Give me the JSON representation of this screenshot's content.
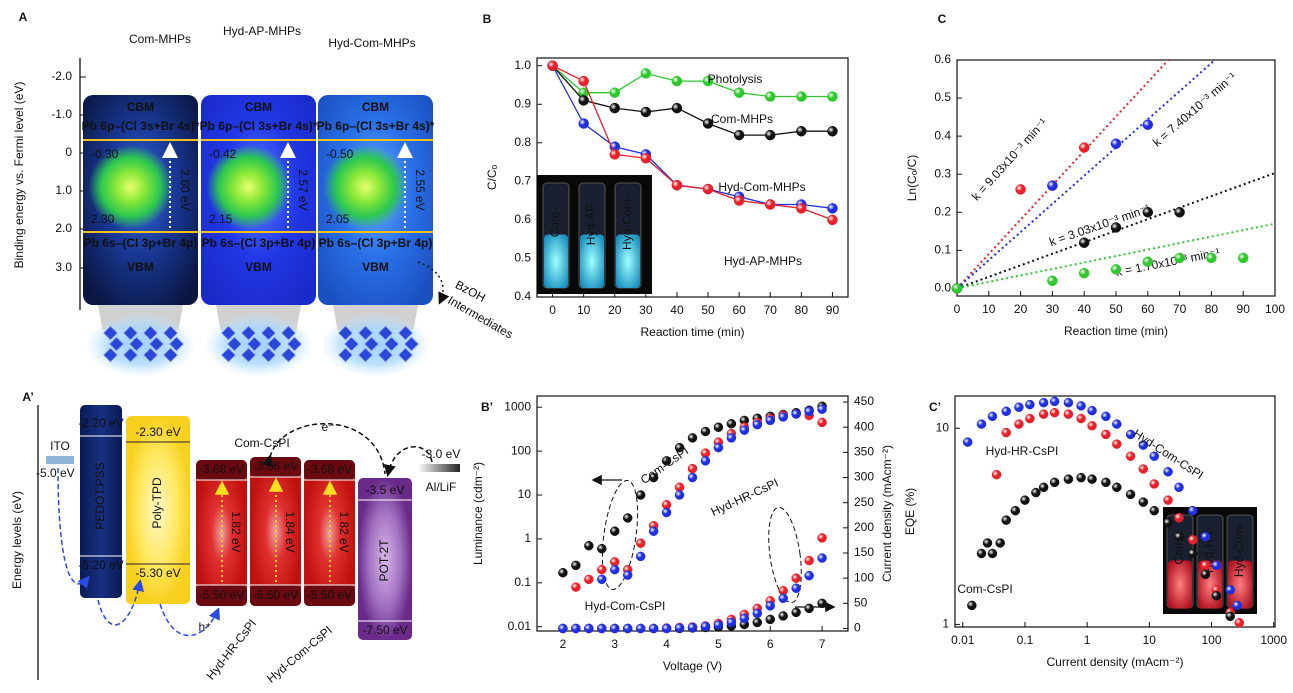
{
  "panel_labels": [
    "A",
    "B",
    "C",
    "A’",
    "B’",
    "C’"
  ],
  "diagram_a": {
    "ylabel": "Binding energy vs. Fermi level (eV)",
    "yticks": [
      "-2.0",
      "-1.0",
      "0",
      "1.0",
      "2.0",
      "3.0"
    ],
    "columns": [
      {
        "name": "Com-MHPs",
        "cbm": "CBM",
        "cb_orbital": "Pb 6p–(Cl 3s+Br 4s)*",
        "cb_value": "-0.30",
        "vb_value": "2.30",
        "gap": "2.60 eV",
        "vb_orbital": "Pb 6s–(Cl 3p+Br 4p)",
        "vbm": "VBM"
      },
      {
        "name": "Hyd-AP-MHPs",
        "cbm": "CBM",
        "cb_orbital": "Pb 6p–(Cl 3s+Br 4s)*",
        "cb_value": "-0.42",
        "vb_value": "2.15",
        "gap": "2.57 eV",
        "vb_orbital": "Pb 6s–(Cl 3p+Br 4p)",
        "vbm": "VBM"
      },
      {
        "name": "Hyd-Com-MHPs",
        "cbm": "CBM",
        "cb_orbital": "Pb 6p–(Cl 3s+Br 4s)*",
        "cb_value": "-0.50",
        "vb_value": "2.05",
        "gap": "2.55 eV",
        "vb_orbital": "Pb 6s–(Cl 3p+Br 4p)",
        "vbm": "VBM"
      }
    ],
    "product": "BzOH",
    "intermediates": "Intermediates"
  },
  "diagram_a2": {
    "ylabel": "Energy levels  (eV)",
    "ito": {
      "name": "ITO",
      "level": "-5.0 eV"
    },
    "layers": [
      {
        "name": "PEDOT:PSS",
        "top": "-2.20 eV",
        "bottom": "-5.20 eV"
      },
      {
        "name": "Poly-TPD",
        "top": "-2.30 eV",
        "bottom": "-5.30 eV"
      },
      {
        "top": "-3.68 eV",
        "bottom": "-5.50 eV",
        "gap": "1.82 eV"
      },
      {
        "top": "-3.66 eV",
        "bottom": "-5.50 eV",
        "gap": "1.84 eV"
      },
      {
        "top": "-3.68 eV",
        "bottom": "-5.50 eV",
        "gap": "1.82 eV"
      },
      {
        "name": "POT-2T",
        "top": "-3.5 eV",
        "bottom": "-7.50 eV"
      }
    ],
    "cathode": {
      "name": "Al/LiF",
      "level": "-3.0 eV"
    },
    "electron": "e⁻",
    "hole": "h⁺",
    "emitters": [
      "Com-CsPI",
      "Hyd-HR-CsPI",
      "Hyd-Com-CsPI"
    ]
  },
  "chart_data": [
    {
      "type": "line",
      "x": [
        0,
        10,
        20,
        30,
        40,
        50,
        60,
        70,
        80,
        90
      ],
      "xlim": [
        -5,
        95
      ],
      "xticks": [
        0,
        10,
        20,
        30,
        40,
        50,
        60,
        70,
        80,
        90
      ],
      "ylim": [
        0.4,
        1.02
      ],
      "yticks": [
        0.4,
        0.5,
        0.6,
        0.7,
        0.8,
        0.9,
        {
          "value": 1,
          "label": "1.0"
        }
      ],
      "xlabel": "Reaction time (min)",
      "ylabel": "C/Cₒ",
      "inset_labels": [
        "Com-",
        "Hyd-AP-",
        "Hyd-Com-"
      ],
      "series": [
        {
          "name": "Photolysis",
          "color": "#2ec82e",
          "values": [
            1.0,
            0.93,
            0.93,
            0.98,
            0.96,
            0.96,
            0.93,
            0.92,
            0.92,
            0.92
          ]
        },
        {
          "name": "Com-MHPs",
          "color": "#111111",
          "values": [
            1.0,
            0.91,
            0.89,
            0.88,
            0.89,
            0.85,
            0.82,
            0.82,
            0.83,
            0.83
          ]
        },
        {
          "name": "Hyd-Com-MHPs",
          "color": "#1f2fe0",
          "values": [
            1.0,
            0.85,
            0.79,
            0.77,
            0.69,
            0.68,
            0.66,
            0.64,
            0.64,
            0.63
          ]
        },
        {
          "name": "Hyd-AP-MHPs",
          "color": "#e8202a",
          "values": [
            1.0,
            0.96,
            0.77,
            0.76,
            0.69,
            0.68,
            0.65,
            0.64,
            0.63,
            0.6
          ]
        }
      ]
    },
    {
      "type": "scatter",
      "xlim": [
        0,
        100
      ],
      "xticks": [
        0,
        10,
        20,
        30,
        40,
        50,
        60,
        70,
        80,
        90,
        100
      ],
      "ylim": [
        -0.02,
        0.6
      ],
      "yticks": [
        {
          "value": 0,
          "label": "0.0"
        },
        0.1,
        0.2,
        0.3,
        0.4,
        0.5,
        0.6
      ],
      "xlabel": "Reaction time (min)",
      "ylabel": "Ln(Cₒ/C)",
      "series": [
        {
          "color": "#e8202a",
          "x": [
            0,
            20,
            30,
            40
          ],
          "values": [
            0,
            0.26,
            0.27,
            0.37
          ],
          "slope": 0.00903,
          "fit_label": "k = 9.03x10⁻³ min⁻¹"
        },
        {
          "color": "#1f2fe0",
          "x": [
            0,
            30,
            50,
            60
          ],
          "values": [
            0,
            0.27,
            0.38,
            0.43
          ],
          "slope": 0.0074,
          "fit_label": "k = 7.40x10⁻³ min⁻¹"
        },
        {
          "color": "#111111",
          "x": [
            0,
            40,
            50,
            60,
            70
          ],
          "values": [
            0,
            0.12,
            0.16,
            0.2,
            0.2
          ],
          "slope": 0.00303,
          "fit_label": "k = 3.03x10⁻³ min⁻¹"
        },
        {
          "color": "#2ec82e",
          "x": [
            0,
            30,
            40,
            50,
            60,
            70,
            80,
            90
          ],
          "values": [
            0,
            0.02,
            0.04,
            0.05,
            0.07,
            0.08,
            0.08,
            0.08
          ],
          "slope": 0.0017,
          "fit_label": "k = 1.70x10⁻³ min⁻¹"
        }
      ]
    },
    {
      "type": "scatter",
      "x": [
        2,
        2.25,
        2.5,
        2.75,
        3,
        3.25,
        3.5,
        3.75,
        4,
        4.25,
        4.5,
        4.75,
        5,
        5.25,
        5.5,
        5.75,
        6,
        6.25,
        6.5,
        6.75,
        7
      ],
      "xlim": [
        1.5,
        7.5
      ],
      "xticks": [
        2,
        3,
        4,
        5,
        6,
        7
      ],
      "ylog": true,
      "ylim": [
        0.008,
        1800
      ],
      "yticks": [
        0.01,
        0.1,
        1,
        10,
        100,
        1000
      ],
      "y2lim": [
        -5,
        462
      ],
      "y2ticks": [
        0,
        50,
        100,
        150,
        200,
        250,
        300,
        350,
        400,
        450
      ],
      "xlabel": "Voltage (V)",
      "ylabel": "Luminance (cdm⁻²)",
      "y2label": "Current density (mAcm⁻²)",
      "series": [
        {
          "name": "Com-CsPI",
          "color": "#111111",
          "values": [
            0.17,
            0.25,
            0.7,
            0.6,
            1.5,
            3,
            10,
            25,
            60,
            120,
            200,
            280,
            350,
            420,
            500,
            560,
            620,
            680,
            750,
            850,
            1050
          ]
        },
        {
          "name": "Hyd-HR-CsPI",
          "color": "#e8202a",
          "values": [
            null,
            0.08,
            0.12,
            0.2,
            0.3,
            0.2,
            0.8,
            2,
            6,
            15,
            40,
            90,
            160,
            250,
            350,
            450,
            550,
            650,
            700,
            650,
            450
          ]
        },
        {
          "name": "Hyd-Com-CsPI",
          "color": "#1f2fe0",
          "values": [
            null,
            null,
            null,
            0.12,
            0.2,
            0.15,
            0.4,
            1.5,
            4,
            10,
            25,
            60,
            120,
            200,
            300,
            400,
            500,
            600,
            700,
            800,
            900
          ]
        },
        {
          "color": "#111111",
          "axis": "y2",
          "values": [
            0,
            0,
            0,
            0,
            0,
            0,
            0,
            0,
            0,
            0,
            1,
            2,
            3,
            5,
            8,
            12,
            18,
            25,
            32,
            40,
            50
          ]
        },
        {
          "color": "#e8202a",
          "axis": "y2",
          "values": [
            0,
            0,
            0,
            0,
            0,
            0,
            0,
            0,
            1,
            2,
            3,
            5,
            10,
            18,
            28,
            40,
            55,
            75,
            100,
            135,
            180
          ]
        },
        {
          "color": "#1f2fe0",
          "axis": "y2",
          "values": [
            0,
            0,
            0,
            0,
            0,
            0,
            0,
            0,
            0,
            1,
            2,
            4,
            7,
            12,
            20,
            30,
            45,
            60,
            80,
            105,
            140
          ]
        }
      ]
    },
    {
      "type": "scatter",
      "xlog": true,
      "xlim": [
        0.0075,
        1050
      ],
      "xticks": [
        0.01,
        0.1,
        1,
        10,
        100,
        1000
      ],
      "ylog": true,
      "ylim": [
        0.97,
        14.6
      ],
      "yticks": [
        1,
        10
      ],
      "xlabel": "Current density (mAcm⁻²)",
      "ylabel": "EQE (%)",
      "inset_labels": [
        "Com-",
        "Hyd-HR-",
        "Hyd-Com-"
      ],
      "series": [
        {
          "name": "Hyd-Com-CsPI",
          "color": "#1f2fe0",
          "x": [
            0.012,
            0.02,
            0.03,
            0.05,
            0.08,
            0.12,
            0.2,
            0.3,
            0.5,
            0.8,
            1.2,
            2,
            3,
            5,
            8,
            12,
            20,
            30,
            50,
            80,
            120,
            200,
            260
          ],
          "values": [
            8.5,
            10.5,
            11.5,
            12.2,
            12.8,
            13.2,
            13.5,
            13.7,
            13.5,
            13,
            12.3,
            11.5,
            10.5,
            9.3,
            8.2,
            7.2,
            6,
            5,
            3.8,
            2.8,
            2,
            1.5,
            1.25
          ]
        },
        {
          "name": "Hyd-HR-CsPI",
          "color": "#e8202a",
          "x": [
            0.035,
            0.05,
            0.08,
            0.12,
            0.2,
            0.3,
            0.5,
            0.8,
            1.2,
            2,
            3,
            5,
            8,
            12,
            20,
            30,
            50,
            80,
            120,
            200,
            280
          ],
          "values": [
            5.8,
            9.5,
            10.5,
            11.2,
            11.8,
            12,
            11.8,
            11.2,
            10.3,
            9.3,
            8.3,
            7.2,
            6.2,
            5.2,
            4.3,
            3.5,
            2.7,
            2,
            1.5,
            1.15,
            1.02
          ]
        },
        {
          "name": "Com-CsPI",
          "color": "#111111",
          "x": [
            0.014,
            0.02,
            0.025,
            0.03,
            0.04,
            0.05,
            0.07,
            0.1,
            0.15,
            0.2,
            0.3,
            0.5,
            0.8,
            1.2,
            2,
            3,
            5,
            8,
            12,
            20,
            30,
            50,
            80,
            120,
            200
          ],
          "values": [
            1.25,
            2.3,
            2.6,
            2.3,
            2.6,
            3.4,
            3.8,
            4.3,
            4.7,
            5,
            5.3,
            5.5,
            5.6,
            5.5,
            5.3,
            5,
            4.6,
            4.2,
            3.8,
            3.3,
            2.8,
            2.3,
            1.8,
            1.4,
            1.1
          ]
        }
      ]
    }
  ]
}
